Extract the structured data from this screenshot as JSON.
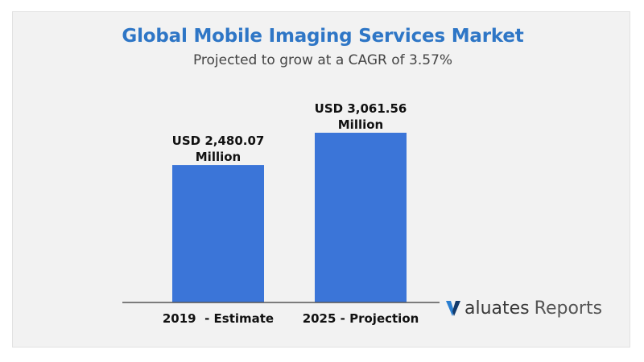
{
  "chart_data": {
    "type": "bar",
    "title": "Global Mobile Imaging Services Market",
    "subtitle": "Projected to grow at a CAGR of 3.57%",
    "categories": [
      "2019  - Estimate",
      "2025 - Projection"
    ],
    "values": [
      2480.07,
      3061.56
    ],
    "data_labels": [
      [
        "USD 2,480.07",
        "Million"
      ],
      [
        "USD 3,061.56",
        "Million"
      ]
    ],
    "bar_color": "#3b75d8",
    "grid": false,
    "xlabel": "",
    "ylabel": ""
  },
  "logo": {
    "mark": "V",
    "text_1": "aluates",
    "text_2": "Reports",
    "mark_colors": [
      "#2b7fd1",
      "#123a6b"
    ]
  }
}
